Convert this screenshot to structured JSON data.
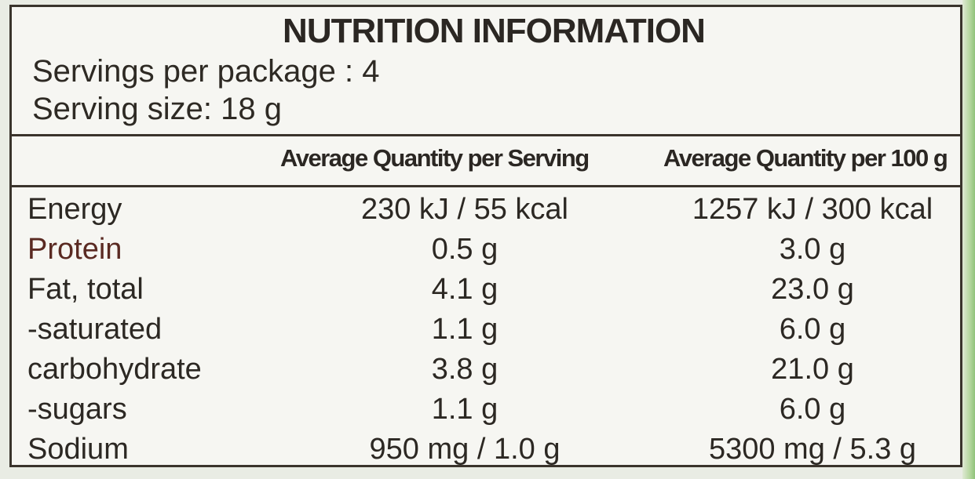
{
  "label": {
    "title": "NUTRITION INFORMATION",
    "servings_per_package": "Servings per package : 4",
    "serving_size": "Serving size: 18 g",
    "column_headers": [
      "Average Quantity per Serving",
      "Average Quantity per 100 g"
    ],
    "rows": [
      {
        "nutrient": "Energy",
        "per_serving": "230 kJ / 55 kcal",
        "per_100g": "1257 kJ / 300 kcal"
      },
      {
        "nutrient": "Protein",
        "per_serving": "0.5 g",
        "per_100g": "3.0 g"
      },
      {
        "nutrient": "Fat, total",
        "per_serving": "4.1 g",
        "per_100g": "23.0 g"
      },
      {
        "nutrient": "-saturated",
        "per_serving": "1.1 g",
        "per_100g": "6.0 g"
      },
      {
        "nutrient": "carbohydrate",
        "per_serving": "3.8 g",
        "per_100g": "21.0 g"
      },
      {
        "nutrient": "-sugars",
        "per_serving": "1.1 g",
        "per_100g": "6.0 g"
      },
      {
        "nutrient": "Sodium",
        "per_serving": "950 mg / 1.0 g",
        "per_100g": "5300 mg / 5.3 g"
      }
    ]
  }
}
